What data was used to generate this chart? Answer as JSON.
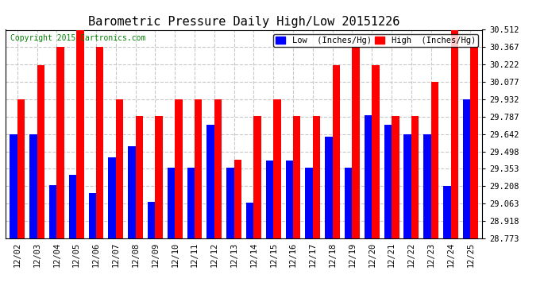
{
  "title": "Barometric Pressure Daily High/Low 20151226",
  "copyright": "Copyright 2015 Cartronics.com",
  "legend_low": "Low  (Inches/Hg)",
  "legend_high": "High  (Inches/Hg)",
  "dates": [
    "12/02",
    "12/03",
    "12/04",
    "12/05",
    "12/06",
    "12/07",
    "12/08",
    "12/09",
    "12/10",
    "12/11",
    "12/12",
    "12/13",
    "12/14",
    "12/15",
    "12/16",
    "12/17",
    "12/18",
    "12/19",
    "12/20",
    "12/21",
    "12/22",
    "12/23",
    "12/24",
    "12/25"
  ],
  "low": [
    29.64,
    29.64,
    29.22,
    29.3,
    29.15,
    29.45,
    29.54,
    29.08,
    29.36,
    29.36,
    29.72,
    29.36,
    29.07,
    29.42,
    29.42,
    29.36,
    29.62,
    29.36,
    29.8,
    29.72,
    29.64,
    29.64,
    29.21,
    29.93
  ],
  "high": [
    29.93,
    30.22,
    30.37,
    30.51,
    30.37,
    29.93,
    29.79,
    29.79,
    29.93,
    29.93,
    29.93,
    29.43,
    29.79,
    29.93,
    29.79,
    29.79,
    30.22,
    30.37,
    30.22,
    29.79,
    29.79,
    30.08,
    30.51,
    30.37
  ],
  "ylim_min": 28.773,
  "ylim_max": 30.512,
  "yticks": [
    28.773,
    28.918,
    29.063,
    29.208,
    29.353,
    29.498,
    29.642,
    29.787,
    29.932,
    30.077,
    30.222,
    30.367,
    30.512
  ],
  "bar_width": 0.38,
  "low_color": "#0000ff",
  "high_color": "#ff0000",
  "bg_color": "#ffffff",
  "grid_color": "#c8c8c8",
  "title_fontsize": 11,
  "axis_fontsize": 7.5,
  "copyright_fontsize": 7,
  "legend_fontsize": 7.5
}
